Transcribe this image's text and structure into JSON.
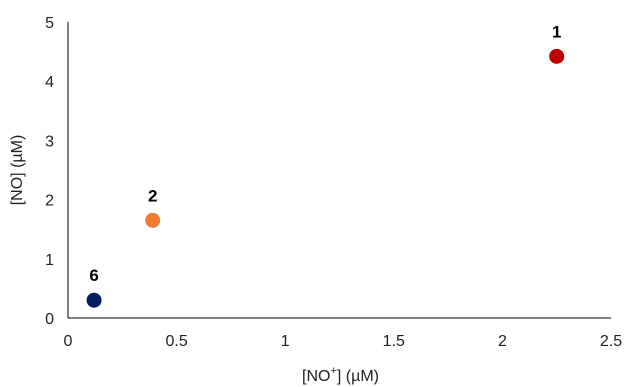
{
  "chart_data": {
    "type": "scatter",
    "xlabel": {
      "prefix": "[NO",
      "sup": "+",
      "suffix": "] (µM)"
    },
    "ylabel": "[NO] (µM)",
    "xlim": [
      0,
      2.5
    ],
    "ylim": [
      0,
      5
    ],
    "x_ticks": [
      "0",
      "0.5",
      "1",
      "1.5",
      "2",
      "2.5"
    ],
    "y_ticks": [
      "0",
      "1",
      "2",
      "3",
      "4",
      "5"
    ],
    "grid": false,
    "points": [
      {
        "label": "1",
        "x": 2.25,
        "y": 4.42,
        "color": "#c00000"
      },
      {
        "label": "2",
        "x": 0.39,
        "y": 1.65,
        "color": "#ed7d31"
      },
      {
        "label": "6",
        "x": 0.12,
        "y": 0.3,
        "color": "#002060"
      }
    ]
  }
}
